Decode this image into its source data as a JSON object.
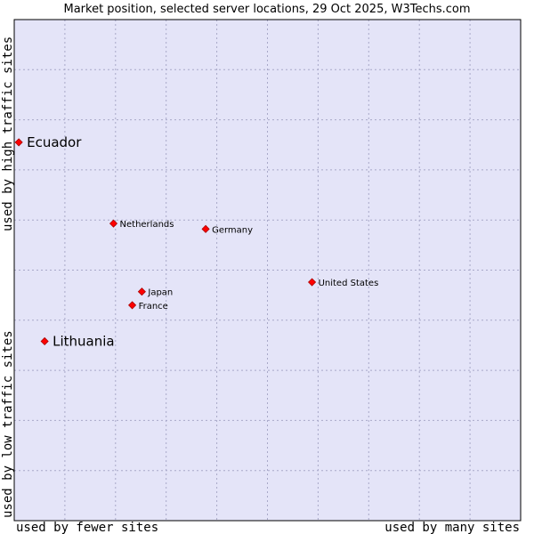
{
  "chart_data": {
    "type": "scatter",
    "title": "Market position, selected server locations, 29 Oct 2025, W3Techs.com",
    "xlabel_low": "used by fewer sites",
    "xlabel_high": "used by many sites",
    "ylabel_low": "used by low traffic sites",
    "ylabel_high": "used by high traffic sites",
    "xlim": [
      0,
      100
    ],
    "ylim": [
      0,
      100
    ],
    "grid": true,
    "points": [
      {
        "label": "Ecuador",
        "x": 0.9,
        "y": 75.5,
        "highlight": true
      },
      {
        "label": "Netherlands",
        "x": 19.6,
        "y": 59.3,
        "highlight": false
      },
      {
        "label": "Germany",
        "x": 37.8,
        "y": 58.2,
        "highlight": false
      },
      {
        "label": "United States",
        "x": 58.8,
        "y": 47.6,
        "highlight": false
      },
      {
        "label": "Japan",
        "x": 25.2,
        "y": 45.7,
        "highlight": false
      },
      {
        "label": "France",
        "x": 23.3,
        "y": 43.0,
        "highlight": false
      },
      {
        "label": "Lithuania",
        "x": 6.0,
        "y": 35.8,
        "highlight": true
      }
    ]
  },
  "colors": {
    "plot_bg": "#e4e4f8",
    "grid": "#a8a8c8",
    "marker": "#ff0000",
    "marker_edge": "#aa0000",
    "axis": "#000000"
  }
}
